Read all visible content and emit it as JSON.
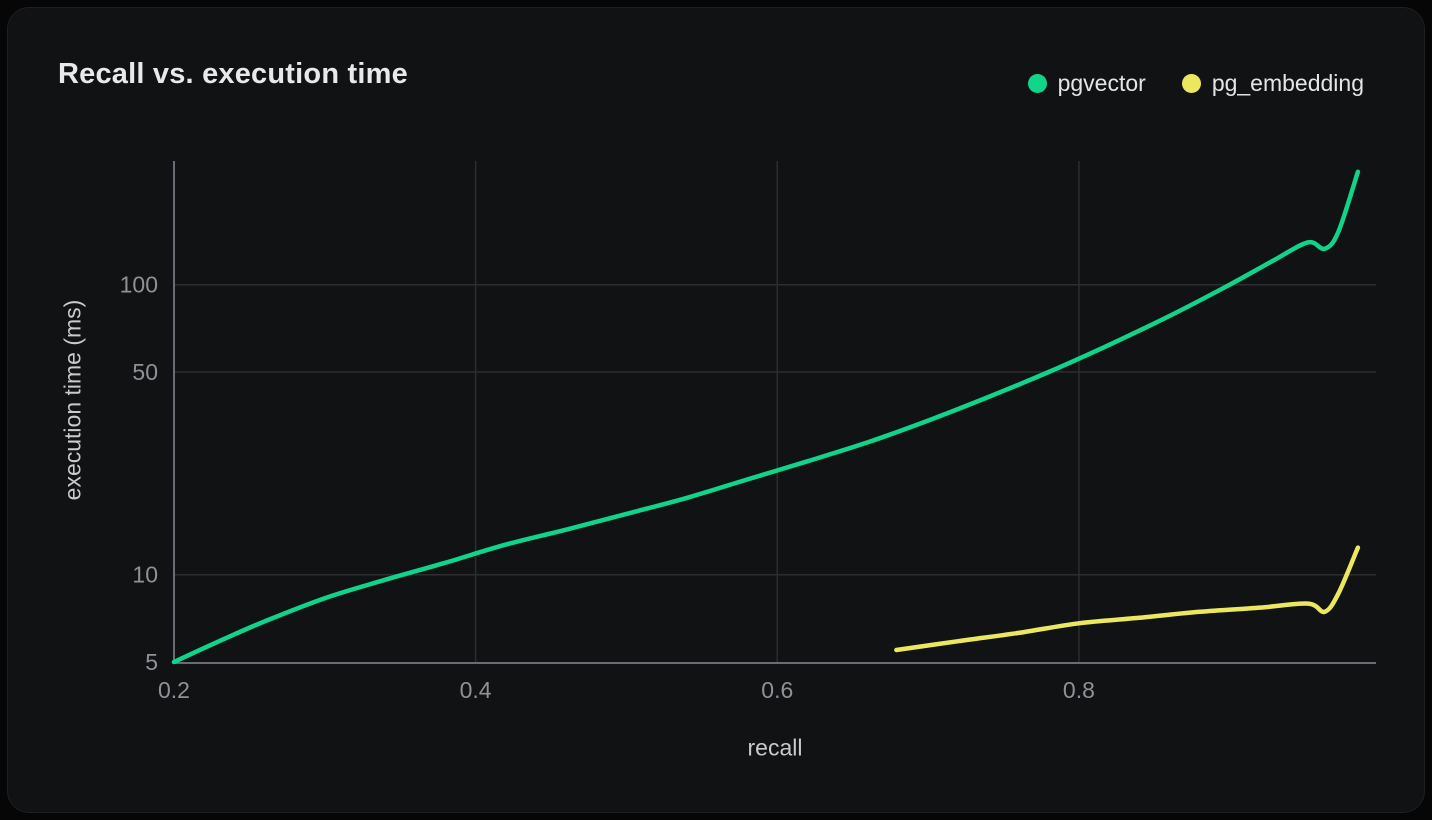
{
  "chart_data": {
    "type": "line",
    "title": "Recall vs. execution time",
    "xlabel": "recall",
    "ylabel": "execution time (ms)",
    "x_scale": "linear",
    "y_scale": "log",
    "xlim": [
      0.2,
      0.997
    ],
    "ylim": [
      5,
      267
    ],
    "x_ticks": [
      "0.2",
      "0.4",
      "0.6",
      "0.8"
    ],
    "x_tick_values": [
      0.2,
      0.4,
      0.6,
      0.8
    ],
    "y_ticks": [
      "5",
      "10",
      "50",
      "100"
    ],
    "y_tick_values": [
      5,
      10,
      50,
      100
    ],
    "grid_x": [
      0.4,
      0.6,
      0.8
    ],
    "grid_y": [
      10,
      50,
      100
    ],
    "legend_position": "top-right",
    "series": [
      {
        "name": "pgvector",
        "color": "#10d489",
        "points": [
          [
            0.2,
            5.0
          ],
          [
            0.23,
            5.9
          ],
          [
            0.26,
            6.9
          ],
          [
            0.3,
            8.3
          ],
          [
            0.34,
            9.6
          ],
          [
            0.38,
            11.0
          ],
          [
            0.42,
            12.7
          ],
          [
            0.46,
            14.3
          ],
          [
            0.5,
            16.2
          ],
          [
            0.54,
            18.4
          ],
          [
            0.58,
            21.3
          ],
          [
            0.62,
            24.6
          ],
          [
            0.66,
            28.6
          ],
          [
            0.7,
            34.0
          ],
          [
            0.74,
            41.0
          ],
          [
            0.78,
            50.0
          ],
          [
            0.82,
            62.0
          ],
          [
            0.86,
            78.0
          ],
          [
            0.9,
            100.0
          ],
          [
            0.93,
            122.0
          ],
          [
            0.952,
            140.0
          ],
          [
            0.963,
            133.0
          ],
          [
            0.972,
            152.0
          ],
          [
            0.985,
            245.0
          ]
        ]
      },
      {
        "name": "pg_embedding",
        "color": "#ebe860",
        "points": [
          [
            0.679,
            5.5
          ],
          [
            0.72,
            5.9
          ],
          [
            0.76,
            6.3
          ],
          [
            0.8,
            6.8
          ],
          [
            0.84,
            7.1
          ],
          [
            0.88,
            7.45
          ],
          [
            0.92,
            7.7
          ],
          [
            0.952,
            7.95
          ],
          [
            0.963,
            7.45
          ],
          [
            0.972,
            8.6
          ],
          [
            0.985,
            12.4
          ]
        ]
      }
    ]
  },
  "colors": {
    "background": "#060607",
    "card": "#111213",
    "grid": "#2c2d31",
    "axis": "#676c75",
    "tick_label": "#909196",
    "axis_label": "#c9cacc",
    "title": "#e8e9ea",
    "legend_label": "#e4e5e7"
  }
}
